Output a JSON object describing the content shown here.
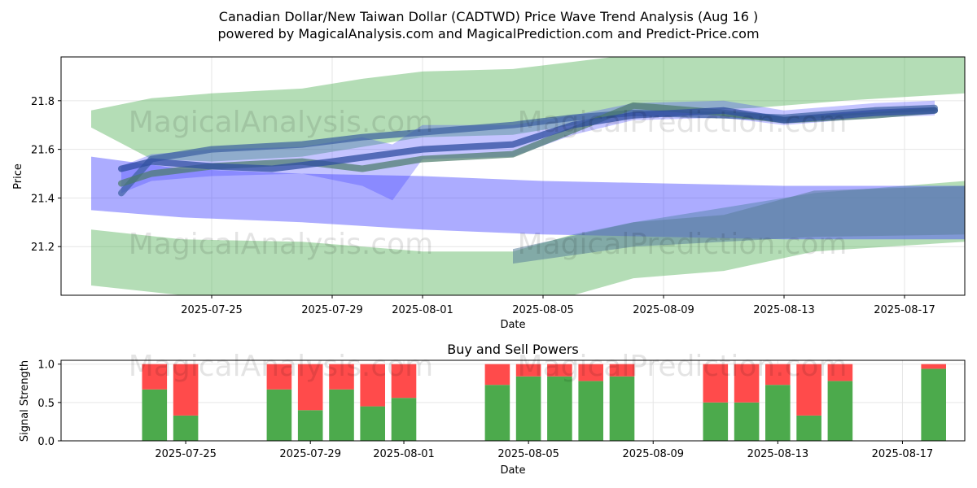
{
  "title_line1": "Canadian Dollar/New Taiwan Dollar (CADTWD) Price Wave Trend Analysis (Aug 16 )",
  "title_line2": "powered by MagicalAnalysis.com and MagicalPrediction.com and Predict-Price.com",
  "watermarks": [
    "MagicalAnalysis.com",
    "MagicalPrediction.com"
  ],
  "colors": {
    "green_band": "#4caf50",
    "blue_band": "#3a3aff",
    "buy": "#4caa4c",
    "sell": "#ff4b4b",
    "grid": "#e6e6e6"
  },
  "chart_data": [
    {
      "type": "area",
      "title": "",
      "xlabel": "Date",
      "ylabel": "Price",
      "x_domain": [
        "2025-07-20",
        "2025-08-19"
      ],
      "x_ticks": [
        "2025-07-25",
        "2025-07-29",
        "2025-08-01",
        "2025-08-05",
        "2025-08-09",
        "2025-08-13",
        "2025-08-17"
      ],
      "ylim": [
        21.0,
        21.98
      ],
      "y_ticks": [
        21.2,
        21.4,
        21.6,
        21.8
      ],
      "bands": [
        {
          "name": "green-upper-wave",
          "color": "green",
          "opacity": 0.42,
          "x": [
            "2025-07-21",
            "2025-07-23",
            "2025-07-25",
            "2025-07-28",
            "2025-07-30",
            "2025-08-01",
            "2025-08-04",
            "2025-08-06",
            "2025-08-08",
            "2025-08-12",
            "2025-08-15",
            "2025-08-19"
          ],
          "upper": [
            21.76,
            21.81,
            21.83,
            21.85,
            21.89,
            21.92,
            21.93,
            21.96,
            21.99,
            21.99,
            21.98,
            21.98
          ],
          "lower": [
            21.69,
            21.56,
            21.55,
            21.57,
            21.61,
            21.65,
            21.66,
            21.7,
            21.75,
            21.77,
            21.8,
            21.83
          ]
        },
        {
          "name": "green-lower-wave",
          "color": "green",
          "opacity": 0.42,
          "x": [
            "2025-07-21",
            "2025-07-24",
            "2025-07-28",
            "2025-08-01",
            "2025-08-04",
            "2025-08-06",
            "2025-08-08",
            "2025-08-11",
            "2025-08-14",
            "2025-08-19"
          ],
          "upper": [
            21.27,
            21.23,
            21.22,
            21.18,
            21.18,
            21.25,
            21.3,
            21.36,
            21.42,
            21.47
          ],
          "lower": [
            21.04,
            21.0,
            21.0,
            21.0,
            21.0,
            21.0,
            21.07,
            21.1,
            21.18,
            21.22
          ]
        },
        {
          "name": "blue-wide-wave",
          "color": "blue",
          "opacity": 0.42,
          "x": [
            "2025-07-21",
            "2025-07-24",
            "2025-07-28",
            "2025-08-01",
            "2025-08-05",
            "2025-08-09",
            "2025-08-13",
            "2025-08-19"
          ],
          "upper": [
            21.57,
            21.52,
            21.5,
            21.49,
            21.47,
            21.46,
            21.45,
            21.45
          ],
          "lower": [
            21.35,
            21.32,
            21.3,
            21.27,
            21.25,
            21.24,
            21.23,
            21.23
          ]
        },
        {
          "name": "blue-mid-wave",
          "color": "blue",
          "opacity": 0.3,
          "x": [
            "2025-07-22",
            "2025-07-23",
            "2025-07-25",
            "2025-07-28",
            "2025-07-30",
            "2025-07-31",
            "2025-08-01",
            "2025-08-04",
            "2025-08-06",
            "2025-08-08",
            "2025-08-11",
            "2025-08-13",
            "2025-08-16",
            "2025-08-18"
          ],
          "upper": [
            21.53,
            21.58,
            21.6,
            21.61,
            21.65,
            21.62,
            21.7,
            21.7,
            21.74,
            21.79,
            21.8,
            21.76,
            21.79,
            21.8
          ],
          "lower": [
            21.42,
            21.47,
            21.49,
            21.5,
            21.45,
            21.39,
            21.56,
            21.57,
            21.66,
            21.72,
            21.73,
            21.7,
            21.73,
            21.74
          ]
        },
        {
          "name": "steel-long-wave",
          "color": "steel",
          "opacity": 0.55,
          "x": [
            "2025-08-04",
            "2025-08-08",
            "2025-08-11",
            "2025-08-14",
            "2025-08-19"
          ],
          "upper": [
            21.19,
            21.3,
            21.33,
            21.43,
            21.45
          ],
          "lower": [
            21.13,
            21.2,
            21.22,
            21.24,
            21.25
          ]
        }
      ],
      "lines": [
        {
          "name": "trend-line-1",
          "color": "#3a5f9f",
          "opacity": 0.7,
          "x": [
            "2025-07-22",
            "2025-07-23",
            "2025-07-25",
            "2025-07-28",
            "2025-07-30",
            "2025-08-01",
            "2025-08-04",
            "2025-08-06",
            "2025-08-08",
            "2025-08-11",
            "2025-08-13",
            "2025-08-16",
            "2025-08-18"
          ],
          "y": [
            21.42,
            21.56,
            21.6,
            21.62,
            21.65,
            21.67,
            21.7,
            21.73,
            21.75,
            21.74,
            21.73,
            21.76,
            21.77
          ]
        },
        {
          "name": "trend-line-2",
          "color": "#4a7a6a",
          "opacity": 0.7,
          "x": [
            "2025-07-22",
            "2025-07-23",
            "2025-07-25",
            "2025-07-28",
            "2025-07-30",
            "2025-08-01",
            "2025-08-04",
            "2025-08-06",
            "2025-08-08",
            "2025-08-11",
            "2025-08-13",
            "2025-08-16",
            "2025-08-18"
          ],
          "y": [
            21.46,
            21.5,
            21.53,
            21.55,
            21.52,
            21.56,
            21.58,
            21.68,
            21.78,
            21.75,
            21.72,
            21.74,
            21.76
          ]
        },
        {
          "name": "trend-line-3",
          "color": "#2f4ea0",
          "opacity": 0.75,
          "x": [
            "2025-07-22",
            "2025-07-23",
            "2025-07-25",
            "2025-07-27",
            "2025-07-29",
            "2025-08-01",
            "2025-08-04",
            "2025-08-06",
            "2025-08-08",
            "2025-08-11",
            "2025-08-13",
            "2025-08-16",
            "2025-08-18"
          ],
          "y": [
            21.52,
            21.55,
            21.53,
            21.52,
            21.55,
            21.6,
            21.62,
            21.7,
            21.74,
            21.76,
            21.72,
            21.75,
            21.76
          ]
        }
      ]
    },
    {
      "type": "bar",
      "title": "Buy and Sell Powers",
      "xlabel": "Date",
      "ylabel": "Signal Strength",
      "x_domain": [
        "2025-07-21",
        "2025-08-19"
      ],
      "x_ticks": [
        "2025-07-25",
        "2025-07-29",
        "2025-08-01",
        "2025-08-05",
        "2025-08-09",
        "2025-08-13",
        "2025-08-17"
      ],
      "ylim": [
        0,
        1.05
      ],
      "y_ticks": [
        0.0,
        0.5,
        1.0
      ],
      "y_tick_labels": [
        "0.0",
        "0.5",
        "1.0"
      ],
      "dates": [
        "2025-07-24",
        "2025-07-25",
        "2025-07-28",
        "2025-07-29",
        "2025-07-30",
        "2025-07-31",
        "2025-08-01",
        "2025-08-04",
        "2025-08-05",
        "2025-08-06",
        "2025-08-07",
        "2025-08-08",
        "2025-08-11",
        "2025-08-12",
        "2025-08-13",
        "2025-08-14",
        "2025-08-15",
        "2025-08-18"
      ],
      "series": [
        {
          "name": "Buy",
          "values": [
            0.67,
            0.33,
            0.67,
            0.4,
            0.67,
            0.45,
            0.56,
            0.73,
            0.84,
            0.84,
            0.78,
            0.84,
            0.5,
            0.5,
            0.73,
            0.33,
            0.78,
            0.94
          ]
        },
        {
          "name": "Sell",
          "values": [
            0.33,
            0.67,
            0.33,
            0.6,
            0.33,
            0.55,
            0.44,
            0.27,
            0.16,
            0.16,
            0.22,
            0.16,
            0.5,
            0.5,
            0.27,
            0.67,
            0.22,
            0.06
          ]
        }
      ]
    }
  ]
}
